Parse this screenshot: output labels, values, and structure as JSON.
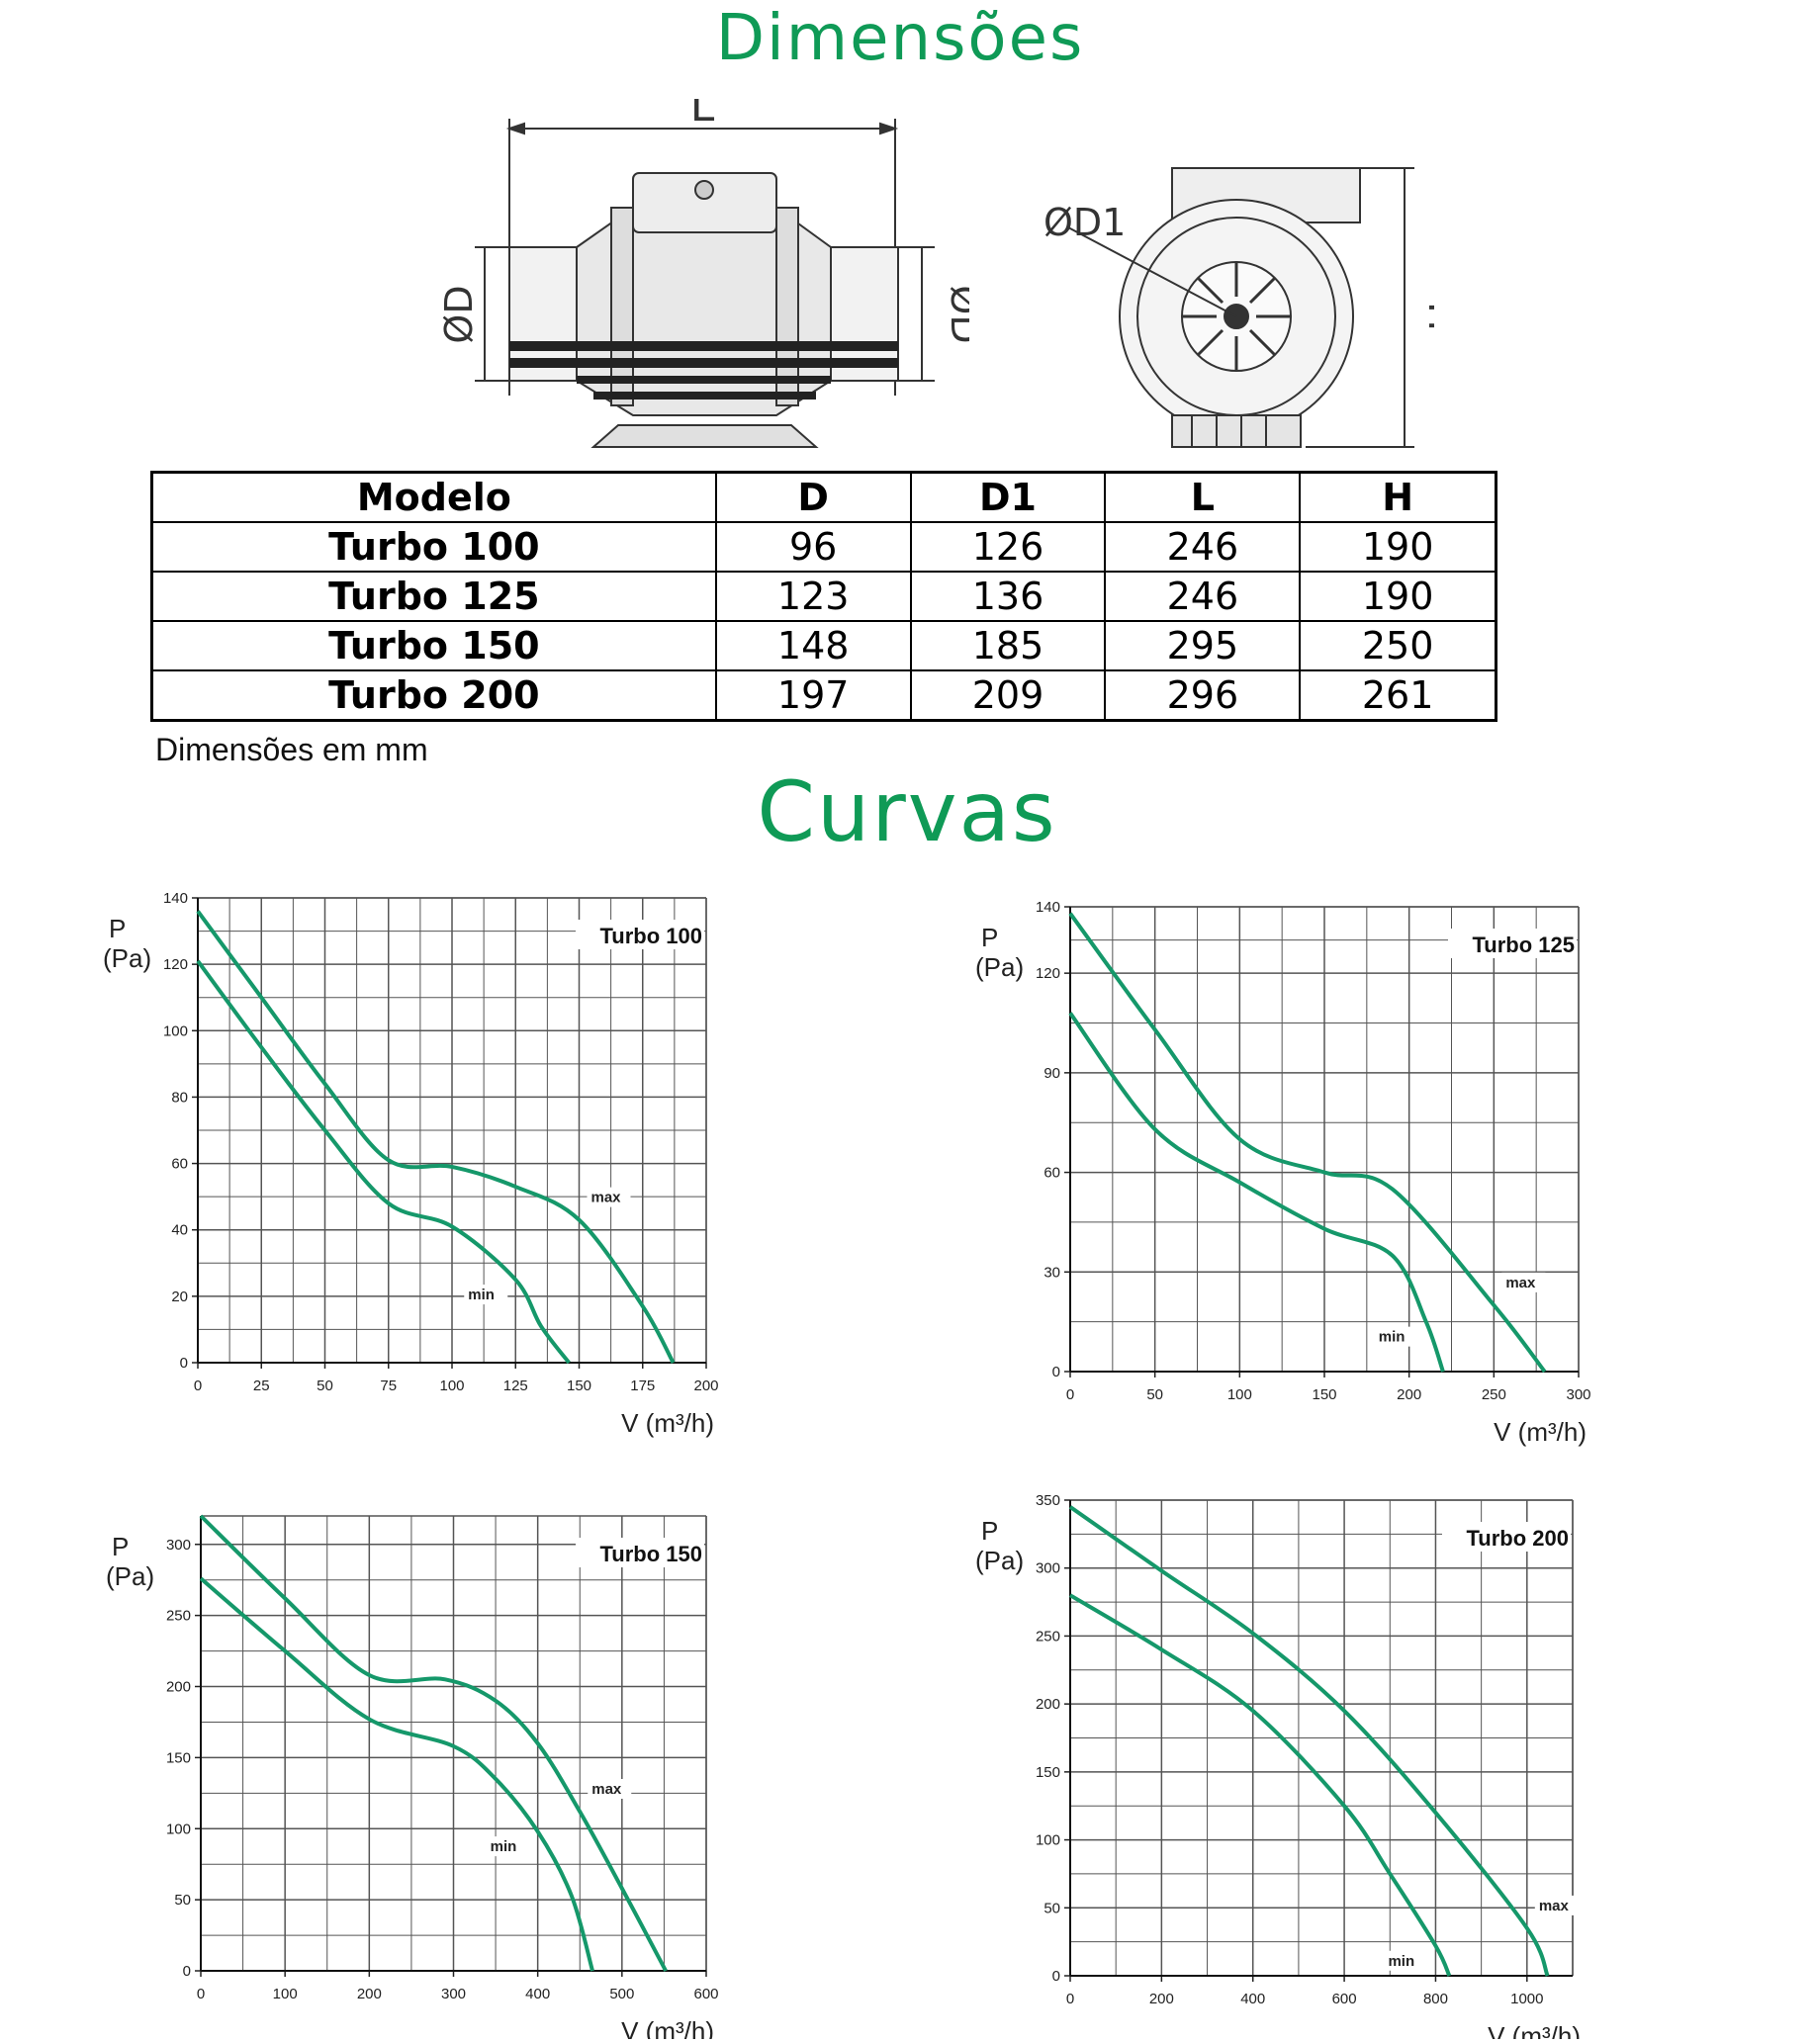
{
  "headings": {
    "dimensions": "Dimensões",
    "curves": "Curvas"
  },
  "drawing": {
    "side_length_label": "L",
    "side_diameter_label": "ØD",
    "front_diameter_label": "ØD1",
    "front_height_label": "H"
  },
  "table": {
    "headers": [
      "Modelo",
      "D",
      "D1",
      "L",
      "H"
    ],
    "rows": [
      {
        "model": "Turbo 100",
        "d": "96",
        "d1": "126",
        "l": "246",
        "h": "190"
      },
      {
        "model": "Turbo 125",
        "d": "123",
        "d1": "136",
        "l": "246",
        "h": "190"
      },
      {
        "model": "Turbo 150",
        "d": "148",
        "d1": "185",
        "l": "295",
        "h": "250"
      },
      {
        "model": "Turbo 200",
        "d": "197",
        "d1": "209",
        "l": "296",
        "h": "261"
      }
    ],
    "note": "Dimensões em mm"
  },
  "colors": {
    "curve": "#15986a",
    "heading": "#0f9a56",
    "grid": "#555555"
  },
  "chart_data": [
    {
      "type": "line",
      "title": "Turbo 100",
      "ylabel_symbol": "P",
      "ylabel_unit": "(Pa)",
      "xlabel": "V (m³/h)",
      "xlim": [
        0,
        200
      ],
      "ylim": [
        0,
        140
      ],
      "xticks": [
        0,
        25,
        50,
        75,
        100,
        125,
        150,
        175,
        200
      ],
      "yticks": [
        0,
        20,
        40,
        60,
        80,
        100,
        120,
        140
      ],
      "grid": true,
      "series": [
        {
          "name": "max",
          "x": [
            0,
            25,
            50,
            75,
            100,
            125,
            150,
            175,
            187
          ],
          "y": [
            136,
            110,
            84,
            61,
            59,
            53,
            43,
            17,
            0
          ]
        },
        {
          "name": "min",
          "x": [
            0,
            25,
            50,
            75,
            100,
            125,
            135,
            146
          ],
          "y": [
            121,
            95,
            70,
            48,
            41,
            25,
            11,
            0
          ]
        }
      ]
    },
    {
      "type": "line",
      "title": "Turbo 125",
      "ylabel_symbol": "P",
      "ylabel_unit": "(Pa)",
      "xlabel": "V (m³/h)",
      "xlim": [
        0,
        300
      ],
      "ylim": [
        0,
        140
      ],
      "xticks": [
        0,
        50,
        100,
        150,
        200,
        250,
        300
      ],
      "yticks": [
        0,
        30,
        60,
        90,
        120,
        140
      ],
      "grid": true,
      "series": [
        {
          "name": "max",
          "x": [
            0,
            50,
            100,
            150,
            190,
            250,
            280
          ],
          "y": [
            138,
            103,
            70,
            60,
            55,
            20,
            0
          ]
        },
        {
          "name": "min",
          "x": [
            0,
            50,
            100,
            150,
            190,
            210,
            220
          ],
          "y": [
            108,
            73,
            57,
            43,
            35,
            15,
            0
          ]
        }
      ]
    },
    {
      "type": "line",
      "title": "Turbo 150",
      "ylabel_symbol": "P",
      "ylabel_unit": "(Pa)",
      "xlabel": "V (m³/h)",
      "xlim": [
        0,
        600
      ],
      "ylim": [
        0,
        320
      ],
      "xticks": [
        0,
        100,
        200,
        300,
        400,
        500,
        600
      ],
      "yticks": [
        0,
        50,
        100,
        150,
        200,
        250,
        300
      ],
      "grid": true,
      "series": [
        {
          "name": "max",
          "x": [
            0,
            100,
            200,
            290,
            350,
            400,
            450,
            500,
            552
          ],
          "y": [
            320,
            262,
            208,
            205,
            190,
            160,
            112,
            58,
            0
          ]
        },
        {
          "name": "min",
          "x": [
            0,
            100,
            200,
            300,
            350,
            400,
            440,
            465
          ],
          "y": [
            276,
            225,
            177,
            158,
            135,
            98,
            53,
            0
          ]
        }
      ]
    },
    {
      "type": "line",
      "title": "Turbo 200",
      "ylabel_symbol": "P",
      "ylabel_unit": "(Pa)",
      "xlabel": "V (m³/h)",
      "xlim": [
        0,
        1100
      ],
      "ylim": [
        0,
        350
      ],
      "xticks": [
        0,
        200,
        400,
        600,
        800,
        1000
      ],
      "yticks": [
        0,
        50,
        100,
        150,
        200,
        250,
        300,
        350
      ],
      "grid": true,
      "series": [
        {
          "name": "max",
          "x": [
            0,
            200,
            400,
            600,
            800,
            1000,
            1045
          ],
          "y": [
            345,
            298,
            252,
            195,
            120,
            35,
            0
          ]
        },
        {
          "name": "min",
          "x": [
            0,
            200,
            400,
            600,
            700,
            800,
            830
          ],
          "y": [
            280,
            240,
            195,
            125,
            75,
            22,
            0
          ]
        }
      ]
    }
  ]
}
